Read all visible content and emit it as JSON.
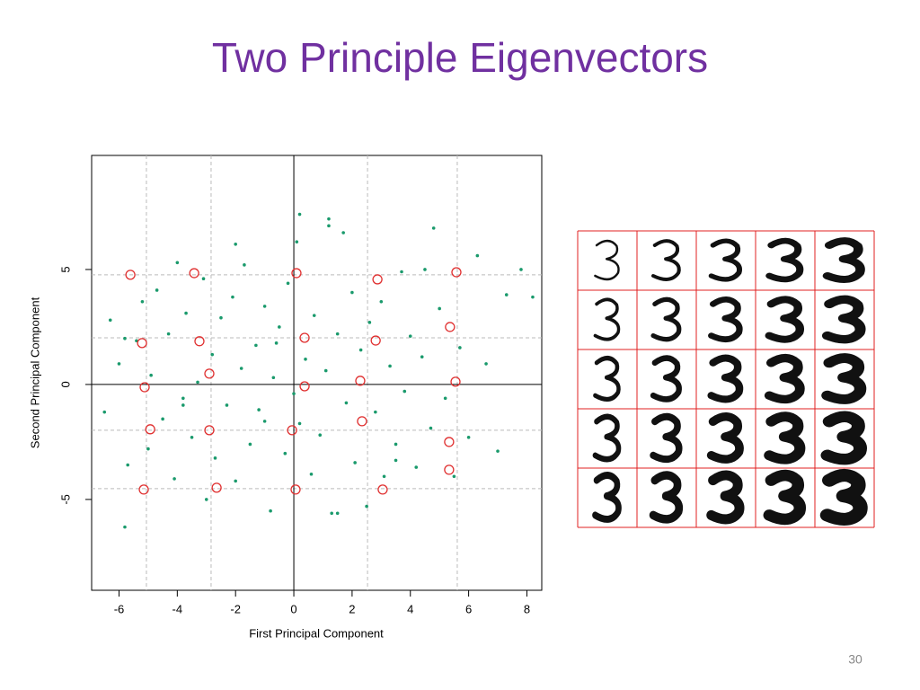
{
  "title": "Two Principle Eigenvectors",
  "page_number": "30",
  "chart_data": {
    "type": "scatter",
    "x_label": "First Principal Component",
    "y_label": "Second Principal Component",
    "xlim": [
      -6.94,
      8.51
    ],
    "ylim": [
      -8.95,
      9.96
    ],
    "xticks": [
      -6,
      -4,
      -2,
      0,
      2,
      4,
      6,
      8
    ],
    "yticks": [
      -5,
      0,
      5
    ],
    "zero_lines": true,
    "reference_lines": {
      "x": [
        -5.06,
        -2.84,
        2.53,
        5.61
      ],
      "y": [
        4.77,
        2.03,
        -1.99,
        -4.53
      ],
      "color": "#bbbbbb"
    },
    "series": [
      {
        "color": "#1a9a6c",
        "marker": "dot",
        "x": [
          -6.5,
          -6.3,
          -6.0,
          -5.8,
          -5.7,
          -5.4,
          -5.2,
          -5.0,
          -4.9,
          -4.7,
          -4.5,
          -4.3,
          -4.1,
          -4.0,
          -3.8,
          -3.7,
          -3.5,
          -3.3,
          -3.1,
          -3.0,
          -2.8,
          -2.7,
          -2.5,
          -2.3,
          -2.1,
          -2.0,
          -1.8,
          -1.7,
          -1.5,
          -1.3,
          -1.2,
          -1.0,
          -0.8,
          -0.7,
          -0.5,
          -0.3,
          -0.2,
          0.0,
          0.1,
          0.2,
          0.4,
          0.6,
          0.7,
          0.9,
          1.1,
          1.2,
          1.3,
          1.5,
          1.7,
          1.8,
          2.0,
          2.1,
          2.3,
          2.5,
          2.6,
          2.8,
          3.0,
          3.1,
          3.3,
          3.5,
          3.7,
          3.8,
          4.0,
          4.2,
          4.4,
          4.5,
          4.7,
          4.8,
          5.0,
          5.2,
          5.5,
          5.7,
          6.0,
          6.3,
          6.6,
          7.0,
          7.3,
          7.8,
          8.2,
          -5.8,
          -2.0,
          1.2,
          0.2,
          -1.0,
          1.5,
          3.5,
          -3.8,
          -0.6
        ],
        "values": [
          -1.2,
          2.8,
          0.9,
          -6.2,
          -3.5,
          1.9,
          3.6,
          -2.8,
          0.4,
          4.1,
          -1.5,
          2.2,
          -4.1,
          5.3,
          -0.6,
          3.1,
          -2.3,
          0.1,
          4.6,
          -5.0,
          1.3,
          -3.2,
          2.9,
          -0.9,
          3.8,
          -4.2,
          0.7,
          5.2,
          -2.6,
          1.7,
          -1.1,
          3.4,
          -5.5,
          0.3,
          2.5,
          -3.0,
          4.4,
          -0.4,
          6.2,
          -1.7,
          1.1,
          -3.9,
          3.0,
          -2.2,
          0.6,
          7.2,
          -5.6,
          2.2,
          6.6,
          -0.8,
          4.0,
          -3.4,
          1.5,
          -5.3,
          2.7,
          -1.2,
          3.6,
          -4.0,
          0.8,
          -2.6,
          4.9,
          -0.3,
          2.1,
          -3.6,
          1.2,
          5.0,
          -1.9,
          6.8,
          3.3,
          -0.6,
          -4.0,
          1.6,
          -2.3,
          5.6,
          0.9,
          -2.9,
          3.9,
          5.0,
          3.8,
          2.0,
          6.1,
          6.9,
          7.4,
          -1.6,
          -5.6,
          -3.3,
          -0.9,
          1.8
        ]
      },
      {
        "color": "#e03030",
        "marker": "open-circle",
        "x": [
          -5.61,
          -3.42,
          0.09,
          2.87,
          5.58,
          -5.21,
          -3.24,
          0.37,
          2.81,
          5.36,
          -2.9,
          -5.12,
          0.37,
          2.28,
          5.55,
          -4.93,
          -2.9,
          -0.06,
          2.34,
          5.33,
          5.33,
          -5.15,
          -2.65,
          0.06,
          3.05
        ],
        "values": [
          4.77,
          4.84,
          4.84,
          4.57,
          4.88,
          1.8,
          1.88,
          2.03,
          1.91,
          2.5,
          0.47,
          -0.12,
          -0.08,
          0.16,
          0.12,
          -1.95,
          -1.99,
          -1.99,
          -1.6,
          -2.5,
          -3.71,
          -4.57,
          -4.49,
          -4.57,
          -4.57
        ]
      }
    ]
  }
}
